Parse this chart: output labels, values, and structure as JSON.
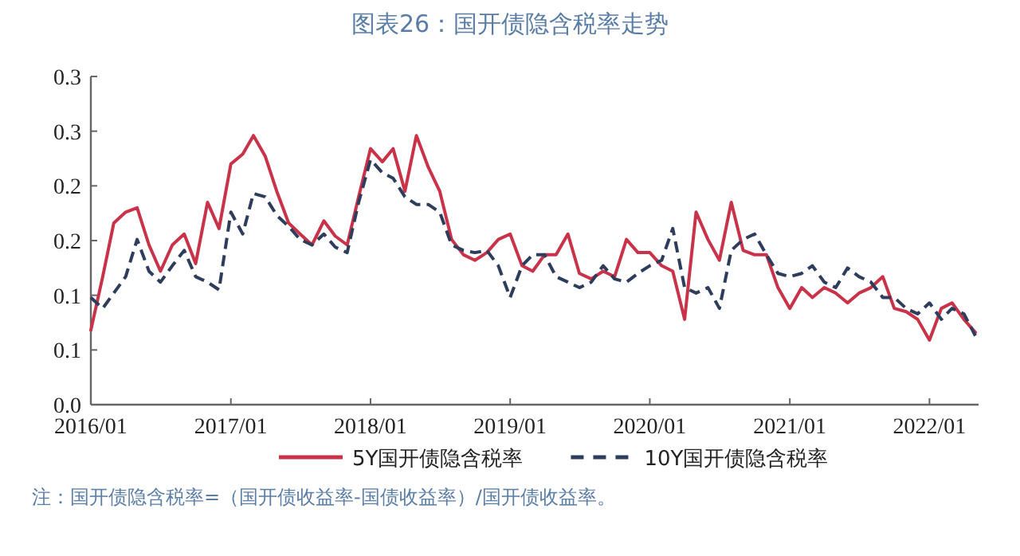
{
  "chart_data": {
    "type": "line",
    "title": "图表26：国开债隐含税率走势",
    "x": [
      "2016-01",
      "2016-02",
      "2016-03",
      "2016-04",
      "2016-05",
      "2016-06",
      "2016-07",
      "2016-08",
      "2016-09",
      "2016-10",
      "2016-11",
      "2016-12",
      "2017-01",
      "2017-02",
      "2017-03",
      "2017-04",
      "2017-05",
      "2017-06",
      "2017-07",
      "2017-08",
      "2017-09",
      "2017-10",
      "2017-11",
      "2017-12",
      "2018-01",
      "2018-02",
      "2018-03",
      "2018-04",
      "2018-05",
      "2018-06",
      "2018-07",
      "2018-08",
      "2018-09",
      "2018-10",
      "2018-11",
      "2018-12",
      "2019-01",
      "2019-02",
      "2019-03",
      "2019-04",
      "2019-05",
      "2019-06",
      "2019-07",
      "2019-08",
      "2019-09",
      "2019-10",
      "2019-11",
      "2019-12",
      "2020-01",
      "2020-02",
      "2020-03",
      "2020-04",
      "2020-05",
      "2020-06",
      "2020-07",
      "2020-08",
      "2020-09",
      "2020-10",
      "2020-11",
      "2020-12",
      "2021-01",
      "2021-02",
      "2021-03",
      "2021-04",
      "2021-05",
      "2021-06",
      "2021-07",
      "2021-08",
      "2021-09",
      "2021-10",
      "2021-11",
      "2021-12",
      "2022-01",
      "2022-02",
      "2022-03",
      "2022-04",
      "2022-05"
    ],
    "series": [
      {
        "name": "5Y国开债隐含税率",
        "color": "#c8334a",
        "line_style": "solid",
        "values": [
          0.068,
          0.117,
          0.166,
          0.176,
          0.18,
          0.146,
          0.122,
          0.146,
          0.156,
          0.129,
          0.185,
          0.161,
          0.22,
          0.229,
          0.246,
          0.227,
          0.195,
          0.166,
          0.156,
          0.146,
          0.168,
          0.154,
          0.146,
          0.19,
          0.234,
          0.222,
          0.234,
          0.195,
          0.246,
          0.217,
          0.195,
          0.151,
          0.137,
          0.132,
          0.139,
          0.151,
          0.156,
          0.127,
          0.122,
          0.137,
          0.137,
          0.156,
          0.12,
          0.115,
          0.122,
          0.117,
          0.151,
          0.139,
          0.139,
          0.127,
          0.122,
          0.078,
          0.176,
          0.151,
          0.132,
          0.185,
          0.141,
          0.137,
          0.137,
          0.107,
          0.088,
          0.107,
          0.098,
          0.107,
          0.102,
          0.093,
          0.102,
          0.107,
          0.117,
          0.088,
          0.085,
          0.078,
          0.059,
          0.088,
          0.093,
          0.078,
          0.066
        ]
      },
      {
        "name": "10Y国开债隐含税率",
        "color": "#2f3d5c",
        "line_style": "dashed",
        "values": [
          0.098,
          0.088,
          0.102,
          0.117,
          0.151,
          0.122,
          0.112,
          0.127,
          0.141,
          0.117,
          0.112,
          0.105,
          0.176,
          0.156,
          0.193,
          0.19,
          0.173,
          0.163,
          0.151,
          0.146,
          0.156,
          0.144,
          0.139,
          0.185,
          0.224,
          0.212,
          0.207,
          0.19,
          0.183,
          0.183,
          0.176,
          0.146,
          0.141,
          0.139,
          0.141,
          0.127,
          0.098,
          0.127,
          0.137,
          0.137,
          0.117,
          0.112,
          0.107,
          0.112,
          0.127,
          0.115,
          0.112,
          0.12,
          0.127,
          0.132,
          0.161,
          0.107,
          0.102,
          0.107,
          0.088,
          0.141,
          0.151,
          0.156,
          0.137,
          0.12,
          0.117,
          0.12,
          0.127,
          0.112,
          0.107,
          0.125,
          0.117,
          0.112,
          0.098,
          0.098,
          0.088,
          0.083,
          0.093,
          0.078,
          0.088,
          0.083,
          0.063
        ]
      }
    ],
    "xlim": [
      "2016-01",
      "2022-05"
    ],
    "xticks": [
      {
        "value": "2016-01",
        "label": "2016/01"
      },
      {
        "value": "2017-01",
        "label": "2017/01"
      },
      {
        "value": "2018-01",
        "label": "2018/01"
      },
      {
        "value": "2019-01",
        "label": "2019/01"
      },
      {
        "value": "2020-01",
        "label": "2020/01"
      },
      {
        "value": "2021-01",
        "label": "2021/01"
      },
      {
        "value": "2022-01",
        "label": "2022/01"
      }
    ],
    "ylim": [
      0,
      0.3
    ],
    "yticks": [
      {
        "value": 0,
        "label": "0.0"
      },
      {
        "value": 0.05,
        "label": "0.1"
      },
      {
        "value": 0.1,
        "label": "0.1"
      },
      {
        "value": 0.15,
        "label": "0.2"
      },
      {
        "value": 0.2,
        "label": "0.2"
      },
      {
        "value": 0.25,
        "label": "0.3"
      },
      {
        "value": 0.3,
        "label": "0.3"
      }
    ],
    "legend": "bottom",
    "annotations": [
      "注：国开债隐含税率=（国开债收益率-国债收益率）/国开债收益率。"
    ]
  }
}
